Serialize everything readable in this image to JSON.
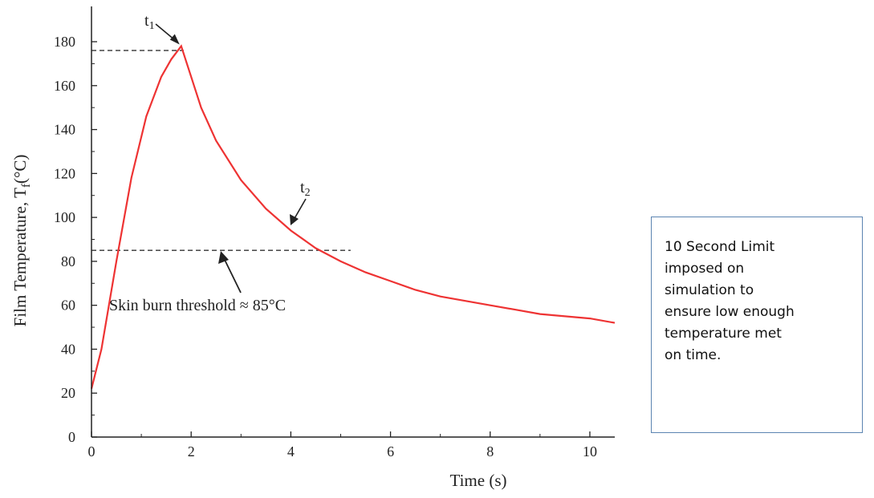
{
  "chart_data": {
    "type": "line",
    "title": "",
    "xlabel": "Time (s)",
    "ylabel": "Film Temperature, T",
    "ylabel_sub": "f",
    "ylabel_unit": "(°C)",
    "xlim": [
      0,
      10.5
    ],
    "ylim": [
      0,
      200
    ],
    "x_ticks": [
      0,
      2,
      4,
      6,
      8,
      10
    ],
    "y_ticks": [
      0,
      20,
      40,
      60,
      80,
      100,
      120,
      140,
      160,
      180
    ],
    "grid": false,
    "series": [
      {
        "color": "#ee3333",
        "x": [
          0,
          0.2,
          0.5,
          0.8,
          1.1,
          1.4,
          1.6,
          1.8,
          2.0,
          2.2,
          2.5,
          3.0,
          3.5,
          4.0,
          4.5,
          5.0,
          5.5,
          6.0,
          6.5,
          7.0,
          7.5,
          8.0,
          8.5,
          9.0,
          9.5,
          10.0,
          10.5
        ],
        "y": [
          22,
          40,
          80,
          118,
          146,
          164,
          172,
          178,
          164,
          150,
          135,
          117,
          104,
          94,
          86,
          80,
          75,
          71,
          67,
          64,
          62,
          60,
          58,
          56,
          55,
          54,
          52
        ]
      }
    ],
    "annotations": [
      {
        "text": "t",
        "sub": "1",
        "x": 1.8,
        "y": 178
      },
      {
        "text": "t",
        "sub": "2",
        "x": 4.0,
        "y": 94
      },
      {
        "text": "Skin burn threshold ≈ 85°C",
        "x": 2.6,
        "y": 85
      }
    ],
    "reference_lines": [
      {
        "y": 176,
        "x_from": 0,
        "x_to": 1.85
      },
      {
        "y": 85,
        "x_from": 0,
        "x_to": 5.2
      }
    ]
  },
  "note": {
    "text": "10 Second Limit\nimposed on\nsimulation to\nensure low enough\ntemperature met\non time."
  }
}
